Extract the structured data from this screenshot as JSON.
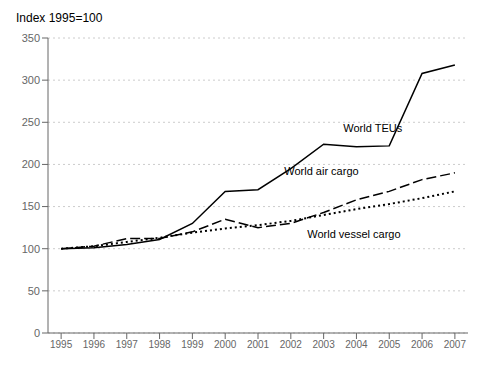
{
  "chart_data": {
    "type": "line",
    "y_label": "Index 1995=100",
    "x": [
      1995,
      1996,
      1997,
      1998,
      1999,
      2000,
      2001,
      2002,
      2003,
      2004,
      2005,
      2006,
      2007
    ],
    "series": [
      {
        "name": "World TEUs",
        "color": "#000000",
        "line_style": "solid",
        "values": [
          100,
          101,
          105,
          111,
          130,
          168,
          170,
          195,
          224,
          221,
          222,
          308,
          318
        ]
      },
      {
        "name": "World air cargo",
        "color": "#000000",
        "line_style": "dashed",
        "values": [
          100,
          103,
          112,
          112,
          120,
          135,
          125,
          130,
          143,
          158,
          168,
          182,
          190
        ]
      },
      {
        "name": "World vessel cargo",
        "color": "#000000",
        "line_style": "dotted",
        "values": [
          100,
          103,
          108,
          113,
          119,
          124,
          128,
          133,
          140,
          147,
          153,
          160,
          168
        ]
      }
    ],
    "annotations": [
      {
        "text": "World TEUs",
        "x": 2003.6,
        "y": 234
      },
      {
        "text": "World air cargo",
        "x": 2001.8,
        "y": 183
      },
      {
        "text": "World vessel cargo",
        "x": 2002.5,
        "y": 127
      }
    ],
    "xlim": [
      1994.6,
      2007.4
    ],
    "xticks": [
      1995,
      1996,
      1997,
      1998,
      1999,
      2000,
      2001,
      2002,
      2003,
      2004,
      2005,
      2006,
      2007
    ],
    "ylim": [
      0,
      350
    ],
    "yticks": [
      0,
      50,
      100,
      150,
      200,
      250,
      300,
      350
    ],
    "grid": true
  }
}
